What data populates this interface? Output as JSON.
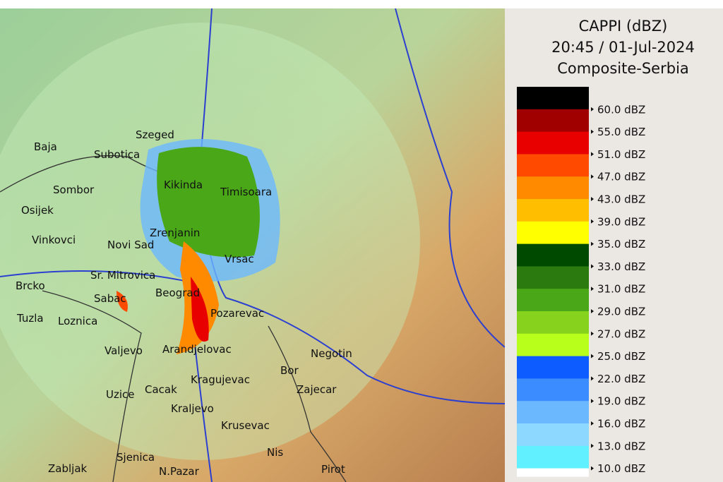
{
  "header": {
    "lines": [
      "CAPPI (dBZ)",
      "20:45 / 01-Jul-2024",
      "Composite-Serbia"
    ]
  },
  "legend": {
    "items": [
      {
        "label": "60.0 dBZ",
        "color": "#000000"
      },
      {
        "label": "55.0 dBZ",
        "color": "#a00000"
      },
      {
        "label": "51.0 dBZ",
        "color": "#e80000"
      },
      {
        "label": "47.0 dBZ",
        "color": "#ff4a00"
      },
      {
        "label": "43.0 dBZ",
        "color": "#ff8a00"
      },
      {
        "label": "39.0 dBZ",
        "color": "#ffbe00"
      },
      {
        "label": "35.0 dBZ",
        "color": "#ffff00"
      },
      {
        "label": "33.0 dBZ",
        "color": "#004a00"
      },
      {
        "label": "31.0 dBZ",
        "color": "#2a7a10"
      },
      {
        "label": "29.0 dBZ",
        "color": "#4aa818"
      },
      {
        "label": "27.0 dBZ",
        "color": "#86d21c"
      },
      {
        "label": "25.0 dBZ",
        "color": "#b8ff1c"
      },
      {
        "label": "22.0 dBZ",
        "color": "#0c5cff"
      },
      {
        "label": "19.0 dBZ",
        "color": "#3a8cff"
      },
      {
        "label": "16.0 dBZ",
        "color": "#6cb8ff"
      },
      {
        "label": "13.0 dBZ",
        "color": "#8cd8ff"
      },
      {
        "label": "10.0 dBZ",
        "color": "#60f0ff"
      }
    ]
  },
  "map": {
    "cities": [
      "Szeged",
      "Baja",
      "Subotica",
      "Sombor",
      "Osijek",
      "Vinkovci",
      "Novi Sad",
      "Zrenjanin",
      "Timisoara",
      "Sr. Mitrovica",
      "Brcko",
      "Sabac",
      "Beograd",
      "Pozarevac",
      "Tuzla",
      "Loznica",
      "Valjevo",
      "Arandjelovac",
      "Negotin",
      "Bor",
      "Kragujevac",
      "Zajecar",
      "Uzice",
      "Cacak",
      "Kraljevo",
      "Krusevac",
      "Nis",
      "Sjenica",
      "Zabljak",
      "N.Pazar",
      "Pirot",
      "Vrsac",
      "Kikinda"
    ]
  }
}
